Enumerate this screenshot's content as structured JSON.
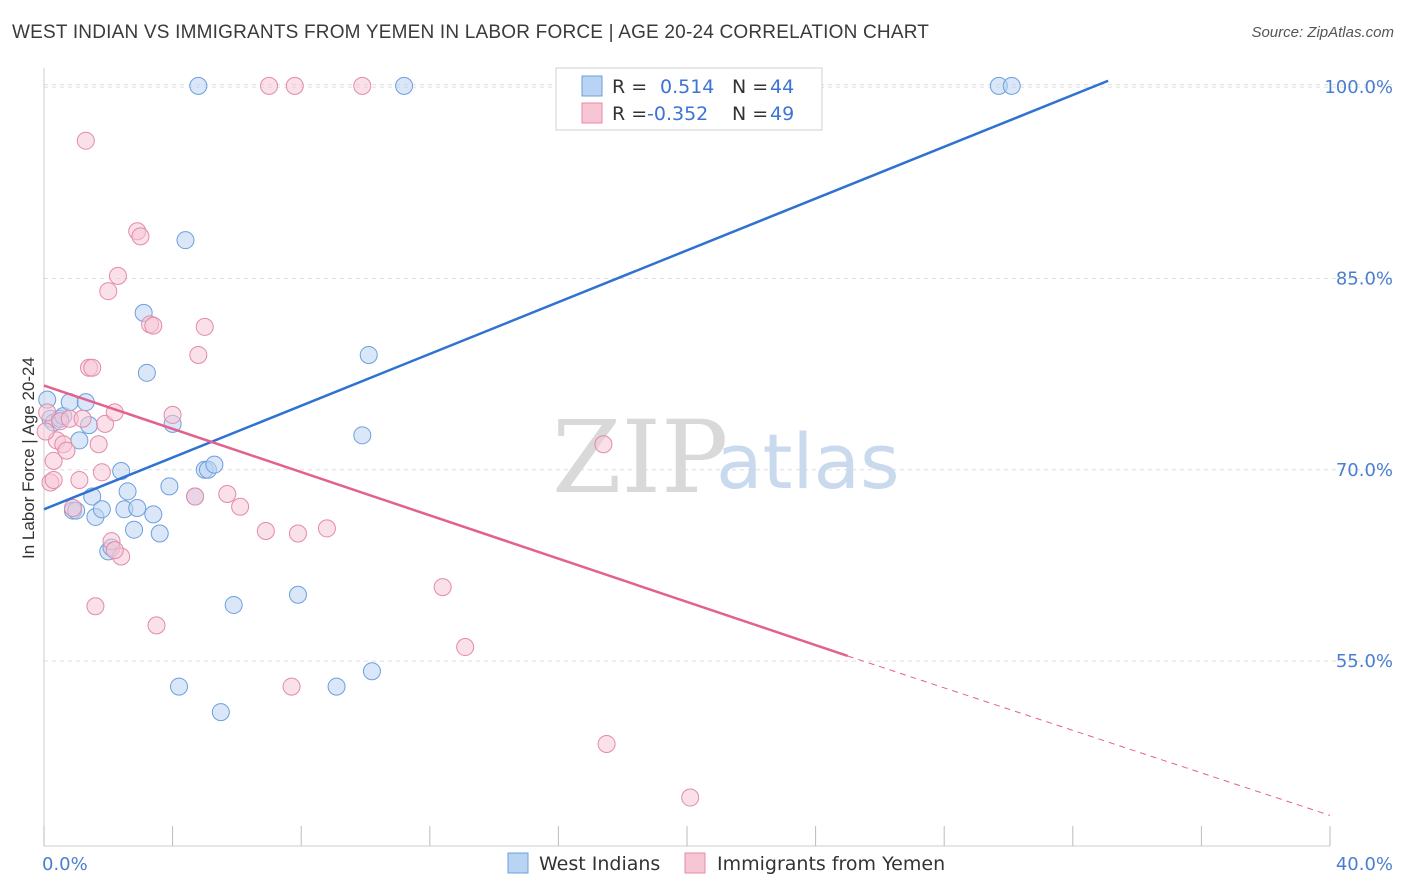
{
  "title": "WEST INDIAN VS IMMIGRANTS FROM YEMEN IN LABOR FORCE | AGE 20-24 CORRELATION CHART",
  "source": "Source: ZipAtlas.com",
  "watermark": {
    "zip": "ZIP",
    "atlas": "atlas"
  },
  "legend_top": {
    "rows": [
      {
        "r_label": "R =",
        "r_value": "0.514",
        "n_label": "N =",
        "n_value": "44"
      },
      {
        "r_label": "R =",
        "r_value": "-0.352",
        "n_label": "N =",
        "n_value": "49"
      }
    ]
  },
  "colors": {
    "blue_fill": "#b9d3f3",
    "blue_stroke": "#6e9fdc",
    "blue_line": "#2f72d0",
    "pink_fill": "#f6c6d5",
    "pink_stroke": "#e58aa8",
    "pink_line": "#e2628d",
    "grid": "#dddddd",
    "tick_text": "#4a7fd0"
  },
  "chart_data": {
    "type": "scatter",
    "title": "WEST INDIAN VS IMMIGRANTS FROM YEMEN IN LABOR FORCE | AGE 20-24 CORRELATION CHART",
    "xlabel": "",
    "ylabel": "In Labor Force | Age 20-24",
    "xlim": [
      0,
      40
    ],
    "ylim": [
      40.5,
      101.5
    ],
    "x_tick_labels": [
      "0.0%",
      "40.0%"
    ],
    "y_ticks": [
      55,
      70,
      85,
      100
    ],
    "y_tick_labels": [
      "55.0%",
      "70.0%",
      "85.0%",
      "100.0%"
    ],
    "grid": true,
    "legend_position": "top-center",
    "series": [
      {
        "name": "West Indians",
        "color": "#6e9fdc",
        "points": [
          [
            0.1,
            75.5
          ],
          [
            0.2,
            74.0
          ],
          [
            0.3,
            73.7
          ],
          [
            0.5,
            74.0
          ],
          [
            0.6,
            74.2
          ],
          [
            0.8,
            75.3
          ],
          [
            0.9,
            66.8
          ],
          [
            1.0,
            66.8
          ],
          [
            1.1,
            72.3
          ],
          [
            1.3,
            75.3
          ],
          [
            1.4,
            73.5
          ],
          [
            1.5,
            67.9
          ],
          [
            1.6,
            66.3
          ],
          [
            1.8,
            66.9
          ],
          [
            2.0,
            63.6
          ],
          [
            2.1,
            63.9
          ],
          [
            2.4,
            69.9
          ],
          [
            2.5,
            66.9
          ],
          [
            2.6,
            68.3
          ],
          [
            2.8,
            65.3
          ],
          [
            2.9,
            67.0
          ],
          [
            3.1,
            82.3
          ],
          [
            3.2,
            77.6
          ],
          [
            3.4,
            66.5
          ],
          [
            3.6,
            65.0
          ],
          [
            3.9,
            68.7
          ],
          [
            4.0,
            73.6
          ],
          [
            4.2,
            53.0
          ],
          [
            4.4,
            88.0
          ],
          [
            4.7,
            67.9
          ],
          [
            4.8,
            100.1
          ],
          [
            5.0,
            70.0
          ],
          [
            5.1,
            70.0
          ],
          [
            5.3,
            70.4
          ],
          [
            5.5,
            51.0
          ],
          [
            5.9,
            59.4
          ],
          [
            7.9,
            60.2
          ],
          [
            9.1,
            53.0
          ],
          [
            9.9,
            72.7
          ],
          [
            10.1,
            79.0
          ],
          [
            10.2,
            54.2
          ],
          [
            11.2,
            100.1
          ],
          [
            29.7,
            100.1
          ],
          [
            30.1,
            100.1
          ]
        ]
      },
      {
        "name": "Immigrants from Yemen",
        "color": "#e58aa8",
        "points": [
          [
            0.1,
            74.5
          ],
          [
            0.2,
            69.0
          ],
          [
            0.3,
            70.7
          ],
          [
            0.4,
            72.3
          ],
          [
            0.5,
            73.8
          ],
          [
            0.6,
            72.0
          ],
          [
            0.7,
            71.5
          ],
          [
            0.8,
            74.0
          ],
          [
            0.9,
            67.0
          ],
          [
            1.1,
            69.2
          ],
          [
            1.3,
            95.8
          ],
          [
            1.4,
            78.0
          ],
          [
            1.5,
            78.0
          ],
          [
            1.6,
            59.3
          ],
          [
            1.7,
            72.0
          ],
          [
            1.8,
            69.8
          ],
          [
            1.9,
            73.6
          ],
          [
            2.0,
            84.0
          ],
          [
            2.1,
            64.4
          ],
          [
            2.2,
            74.5
          ],
          [
            2.3,
            85.2
          ],
          [
            2.4,
            63.2
          ],
          [
            2.9,
            88.7
          ],
          [
            3.0,
            88.3
          ],
          [
            3.3,
            81.4
          ],
          [
            3.4,
            81.3
          ],
          [
            3.5,
            57.8
          ],
          [
            4.0,
            74.3
          ],
          [
            4.7,
            67.9
          ],
          [
            4.8,
            79.0
          ],
          [
            5.0,
            81.2
          ],
          [
            5.7,
            68.1
          ],
          [
            6.1,
            67.1
          ],
          [
            6.9,
            65.2
          ],
          [
            7.0,
            100.1
          ],
          [
            7.7,
            53.0
          ],
          [
            7.8,
            100.1
          ],
          [
            7.9,
            65.0
          ],
          [
            8.8,
            65.4
          ],
          [
            9.9,
            100.1
          ],
          [
            12.4,
            60.8
          ],
          [
            13.1,
            56.1
          ],
          [
            17.4,
            72.0
          ],
          [
            17.5,
            48.5
          ],
          [
            20.1,
            44.3
          ],
          [
            0.05,
            73.0
          ],
          [
            1.2,
            74.0
          ],
          [
            0.3,
            69.2
          ],
          [
            2.2,
            63.7
          ]
        ]
      }
    ],
    "trend_lines": [
      {
        "series": "West Indians",
        "x0": 0,
        "y0": 66.9,
        "x1": 33.1,
        "y1": 100.5,
        "style": "solid"
      },
      {
        "series": "Immigrants from Yemen",
        "x0": 0,
        "y0": 76.6,
        "x1": 25.0,
        "y1": 55.4,
        "style": "solid"
      },
      {
        "series": "Immigrants from Yemen",
        "x0": 25.0,
        "y0": 55.4,
        "x1": 40.0,
        "y1": 42.9,
        "style": "dashed"
      }
    ]
  },
  "legend_bottom": [
    {
      "label": "West Indians",
      "color_key": "blue"
    },
    {
      "label": "Immigrants from Yemen",
      "color_key": "pink"
    }
  ]
}
